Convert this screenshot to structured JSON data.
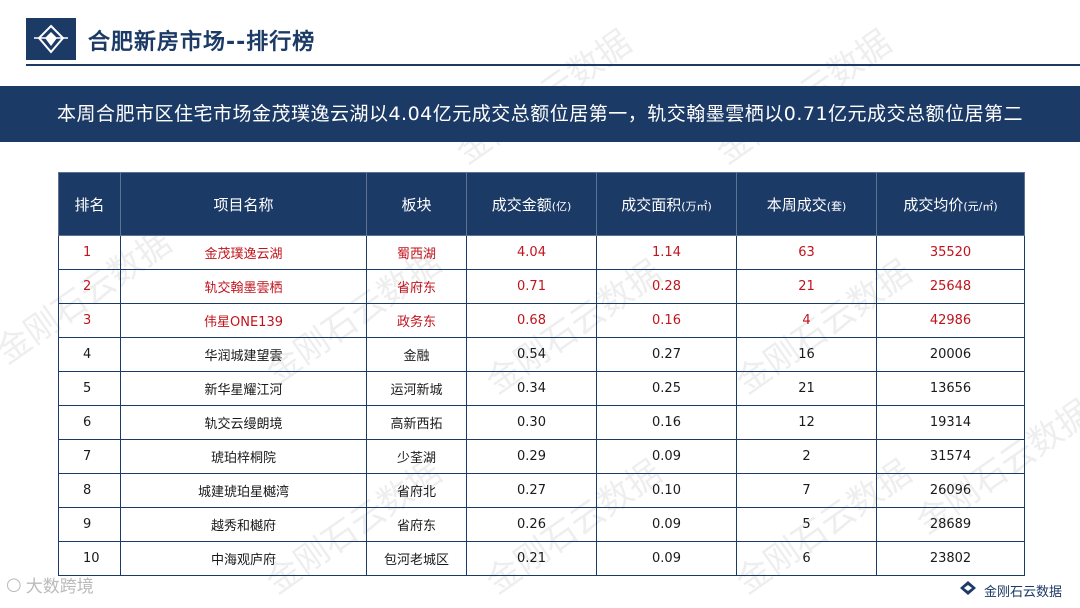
{
  "header": {
    "title": "合肥新房市场--排行榜"
  },
  "banner": {
    "text": "本周合肥市区住宅市场金茂璞逸云湖以4.04亿元成交总额位居第一，轨交翰墨雲栖以0.71亿元成交总额位居第二"
  },
  "table": {
    "headers": {
      "rank": "排名",
      "name": "项目名称",
      "district": "板块",
      "amount": "成交金额",
      "amount_unit": "(亿)",
      "area": "成交面积",
      "area_unit": "(万㎡)",
      "units": "本周成交",
      "units_unit": "(套)",
      "price": "成交均价",
      "price_unit": "(元/㎡)"
    },
    "rows": [
      {
        "rank": "1",
        "name": "金茂璞逸云湖",
        "district": "蜀西湖",
        "amount": "4.04",
        "area": "1.14",
        "units": "63",
        "price": "35520"
      },
      {
        "rank": "2",
        "name": "轨交翰墨雲栖",
        "district": "省府东",
        "amount": "0.71",
        "area": "0.28",
        "units": "21",
        "price": "25648"
      },
      {
        "rank": "3",
        "name": "伟星ONE139",
        "district": "政务东",
        "amount": "0.68",
        "area": "0.16",
        "units": "4",
        "price": "42986"
      },
      {
        "rank": "4",
        "name": "华润城建望雲",
        "district": "金融",
        "amount": "0.54",
        "area": "0.27",
        "units": "16",
        "price": "20006"
      },
      {
        "rank": "5",
        "name": "新华星耀江河",
        "district": "运河新城",
        "amount": "0.34",
        "area": "0.25",
        "units": "21",
        "price": "13656"
      },
      {
        "rank": "6",
        "name": "轨交云缦朗境",
        "district": "高新西拓",
        "amount": "0.30",
        "area": "0.16",
        "units": "12",
        "price": "19314"
      },
      {
        "rank": "7",
        "name": "琥珀梓桐院",
        "district": "少荃湖",
        "amount": "0.29",
        "area": "0.09",
        "units": "2",
        "price": "31574"
      },
      {
        "rank": "8",
        "name": "城建琥珀星樾湾",
        "district": "省府北",
        "amount": "0.27",
        "area": "0.10",
        "units": "7",
        "price": "26096"
      },
      {
        "rank": "9",
        "name": "越秀和樾府",
        "district": "省府东",
        "amount": "0.26",
        "area": "0.09",
        "units": "5",
        "price": "28689"
      },
      {
        "rank": "10",
        "name": "中海观庐府",
        "district": "包河老城区",
        "amount": "0.21",
        "area": "0.09",
        "units": "6",
        "price": "23802"
      }
    ],
    "highlight_color": "#c0141d"
  },
  "footer": {
    "left_brand": "大数跨境",
    "right_brand": "金刚石云数据"
  },
  "watermark_text": "金刚石云数据",
  "colors": {
    "primary": "#1c3a66",
    "highlight": "#c0141d"
  }
}
